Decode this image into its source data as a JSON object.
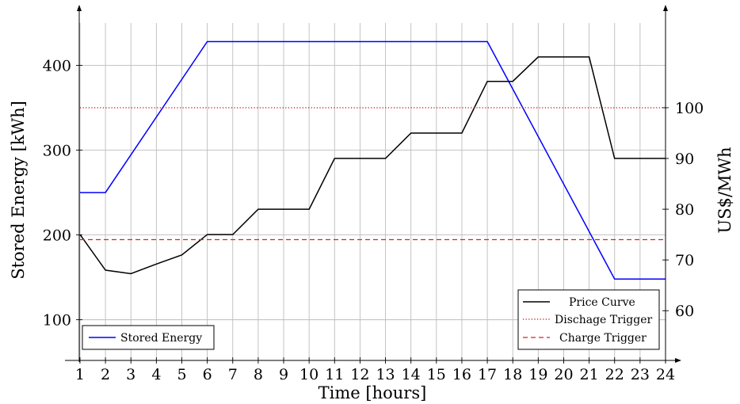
{
  "chart_data": {
    "type": "line",
    "xlabel": "Time [hours]",
    "ylabel_left": "Stored Energy [kWh]",
    "ylabel_right": "US$/MWh",
    "x_ticks": [
      1,
      2,
      3,
      4,
      5,
      6,
      7,
      8,
      9,
      10,
      11,
      12,
      13,
      14,
      15,
      16,
      17,
      18,
      19,
      20,
      21,
      22,
      23,
      24
    ],
    "y_left_ticks": [
      100,
      200,
      300,
      400
    ],
    "y_right_ticks": [
      60,
      70,
      80,
      90,
      100
    ],
    "xlim": [
      0.97,
      24
    ],
    "y_left_lim": [
      52,
      450
    ],
    "y_right_lim": [
      50.2,
      116.7
    ],
    "grid": true,
    "series": [
      {
        "name": "Stored Energy",
        "axis": "left",
        "color": "#0000ff",
        "style": "solid",
        "x": [
          1,
          2,
          6,
          17,
          22,
          24
        ],
        "values": [
          250,
          250,
          428,
          428,
          148,
          148
        ]
      },
      {
        "name": "Price Curve",
        "axis": "right",
        "color": "#000000",
        "style": "solid",
        "x": [
          1,
          2,
          3,
          4,
          5,
          6,
          7,
          8,
          9,
          10,
          11,
          12,
          13,
          14,
          15,
          16,
          17,
          18,
          19,
          20,
          21,
          22,
          23,
          24
        ],
        "values": [
          75,
          68,
          67.3,
          69.2,
          71,
          75,
          75,
          80,
          80,
          80,
          90,
          90,
          90,
          95,
          95,
          95,
          105.2,
          105.2,
          110,
          110,
          110,
          90,
          90,
          90
        ]
      },
      {
        "name": "Dischage Trigger",
        "axis": "right",
        "color": "#cc0000",
        "style": "dotted",
        "x": [
          1,
          24
        ],
        "values": [
          100,
          100
        ]
      },
      {
        "name": "Charge Trigger",
        "axis": "right",
        "color": "#dd2222",
        "style": "dashed",
        "x": [
          1,
          24
        ],
        "values": [
          74,
          74
        ]
      }
    ],
    "legends": [
      {
        "placement": "bottom-left",
        "entries": [
          "Stored Energy"
        ]
      },
      {
        "placement": "bottom-right",
        "entries": [
          "Price Curve",
          "Dischage Trigger",
          "Charge Trigger"
        ]
      }
    ]
  }
}
